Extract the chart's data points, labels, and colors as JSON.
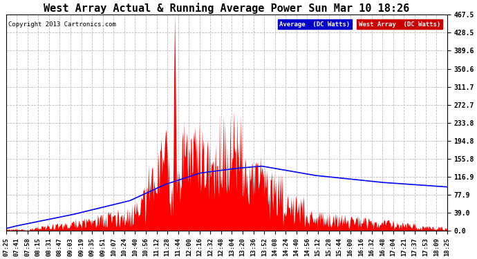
{
  "title": "West Array Actual & Running Average Power Sun Mar 10 18:26",
  "copyright": "Copyright 2013 Cartronics.com",
  "legend_labels": [
    "Average  (DC Watts)",
    "West Array  (DC Watts)"
  ],
  "ylim": [
    0,
    467.5
  ],
  "yticks": [
    0.0,
    39.0,
    77.9,
    116.9,
    155.8,
    194.8,
    233.8,
    272.7,
    311.7,
    350.6,
    389.6,
    428.5,
    467.5
  ],
  "bg_color": "#ffffff",
  "grid_color": "#bbbbbb",
  "west_array_color": "#ff0000",
  "average_color": "#0000ff",
  "avg_legend_bg": "#0000cc",
  "west_legend_bg": "#cc0000",
  "time_labels": [
    "07:25",
    "07:41",
    "07:58",
    "08:15",
    "08:31",
    "08:47",
    "09:03",
    "09:19",
    "09:35",
    "09:51",
    "10:07",
    "10:24",
    "10:40",
    "10:56",
    "11:12",
    "11:28",
    "11:44",
    "12:00",
    "12:16",
    "12:32",
    "12:48",
    "13:04",
    "13:20",
    "13:36",
    "13:52",
    "14:08",
    "14:24",
    "14:40",
    "14:56",
    "15:12",
    "15:28",
    "15:44",
    "16:00",
    "16:16",
    "16:32",
    "16:48",
    "17:04",
    "17:21",
    "17:37",
    "17:53",
    "18:09",
    "18:25"
  ],
  "n_points": 660,
  "title_fontsize": 11,
  "tick_fontsize": 7,
  "xlabel_fontsize": 6.5
}
